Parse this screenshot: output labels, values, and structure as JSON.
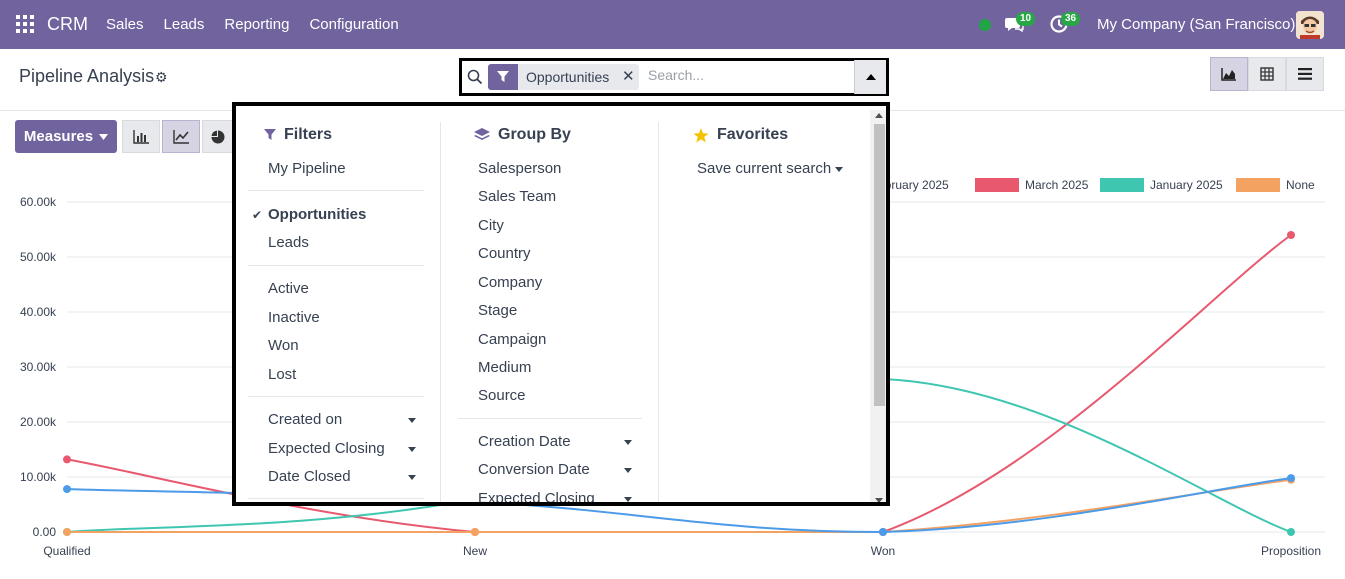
{
  "navbar": {
    "app_name": "CRM",
    "menu": [
      "Sales",
      "Leads",
      "Reporting",
      "Configuration"
    ],
    "message_count": "10",
    "activity_count": "36",
    "company": "My Company (San Francisco)",
    "icons": [
      "apps-icon",
      "chat-icon",
      "activity-icon",
      "avatar"
    ]
  },
  "control_panel": {
    "title": "Pipeline Analysis",
    "facet_label": "Opportunities",
    "search_placeholder": "Search...",
    "measures_label": "Measures"
  },
  "chart_data": {
    "type": "line",
    "categories": [
      "Qualified",
      "New",
      "Won",
      "Proposition"
    ],
    "ylim": [
      0,
      60000
    ],
    "yticks": [
      "0.00",
      "10.00k",
      "20.00k",
      "30.00k",
      "40.00k",
      "50.00k",
      "60.00k"
    ],
    "legend_visible": [
      "ebruary 2025",
      "March 2025",
      "January 2025",
      "None"
    ],
    "series": [
      {
        "name": "March 2025",
        "color": "#e8596e",
        "values": [
          13200,
          0,
          0,
          54000
        ]
      },
      {
        "name": "January 2025",
        "color": "#3fc6b0",
        "values": [
          0,
          6000,
          27800,
          0
        ]
      },
      {
        "name": "None",
        "color": "#f4a261",
        "values": [
          0,
          0,
          0,
          9500
        ]
      },
      {
        "color": "#4c9be8",
        "values": [
          7800,
          5500,
          0,
          9800
        ]
      }
    ]
  },
  "dropdown": {
    "filters": {
      "heading": "Filters",
      "groups": [
        [
          "My Pipeline"
        ],
        [
          "Opportunities",
          "Leads"
        ],
        [
          "Active",
          "Inactive",
          "Won",
          "Lost"
        ],
        [
          "Created on",
          "Expected Closing",
          "Date Closed"
        ]
      ],
      "selected": "Opportunities"
    },
    "group_by": {
      "heading": "Group By",
      "fields": [
        "Salesperson",
        "Sales Team",
        "City",
        "Country",
        "Company",
        "Stage",
        "Campaign",
        "Medium",
        "Source"
      ],
      "date_fields": [
        "Creation Date",
        "Conversion Date",
        "Expected Closing"
      ]
    },
    "favorites": {
      "heading": "Favorites",
      "save_label": "Save current search"
    }
  }
}
